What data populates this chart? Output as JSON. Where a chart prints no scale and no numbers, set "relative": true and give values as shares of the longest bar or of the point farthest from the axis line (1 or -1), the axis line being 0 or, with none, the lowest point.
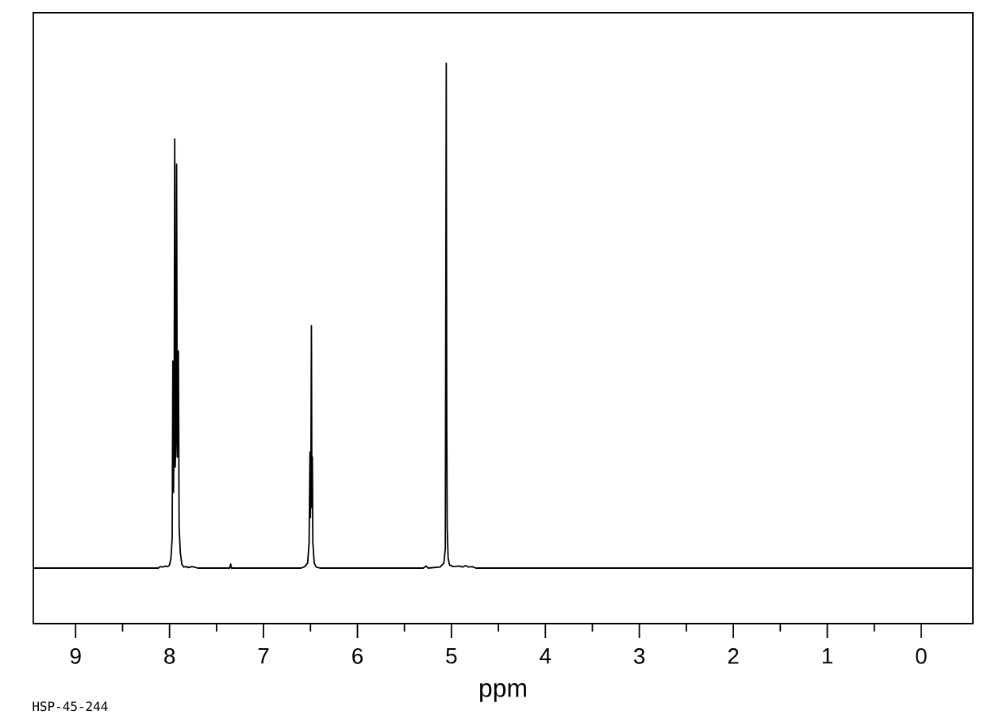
{
  "chart_data": {
    "type": "line",
    "xlabel": "ppm",
    "relative": true,
    "color": "#000000",
    "annotations": [
      "HSP-45-244"
    ],
    "xlim": [
      9.45,
      -0.55
    ],
    "xticks": [
      9,
      8,
      7,
      6,
      5,
      4,
      3,
      2,
      1,
      0
    ],
    "x": [
      9.45,
      8.12,
      8.1,
      8.07,
      8.05,
      8.02,
      8.0,
      7.985,
      7.972,
      7.965,
      7.958,
      7.951,
      7.945,
      7.94,
      7.932,
      7.925,
      7.918,
      7.912,
      7.906,
      7.898,
      7.885,
      7.87,
      7.85,
      7.82,
      7.8,
      7.76,
      7.74,
      7.7,
      7.36,
      7.35,
      7.34,
      6.6,
      6.56,
      6.53,
      6.515,
      6.505,
      6.5,
      6.495,
      6.49,
      6.485,
      6.48,
      6.475,
      6.46,
      6.44,
      6.4,
      5.3,
      5.27,
      5.25,
      5.12,
      5.08,
      5.065,
      5.055,
      5.05,
      5.045,
      5.035,
      5.02,
      4.98,
      4.92,
      4.88,
      4.85,
      4.82,
      4.78,
      4.74,
      -0.55
    ],
    "values": [
      0,
      0,
      0.003,
      0.002,
      0.004,
      0.003,
      0.006,
      0.02,
      0.06,
      0.41,
      0.15,
      0.3,
      0.85,
      0.2,
      0.26,
      0.8,
      0.22,
      0.35,
      0.43,
      0.08,
      0.03,
      0.008,
      0.002,
      0.003,
      0.001,
      0.003,
      0.002,
      0,
      0,
      0.008,
      0,
      0,
      0.003,
      0.01,
      0.05,
      0.23,
      0.1,
      0.22,
      0.48,
      0.12,
      0.22,
      0.05,
      0.01,
      0.002,
      0,
      0,
      0.004,
      0,
      0.002,
      0.01,
      0.04,
      1.0,
      0.3,
      0.08,
      0.02,
      0.006,
      0.003,
      0.004,
      0.002,
      0.005,
      0.002,
      0.003,
      0,
      0
    ]
  }
}
